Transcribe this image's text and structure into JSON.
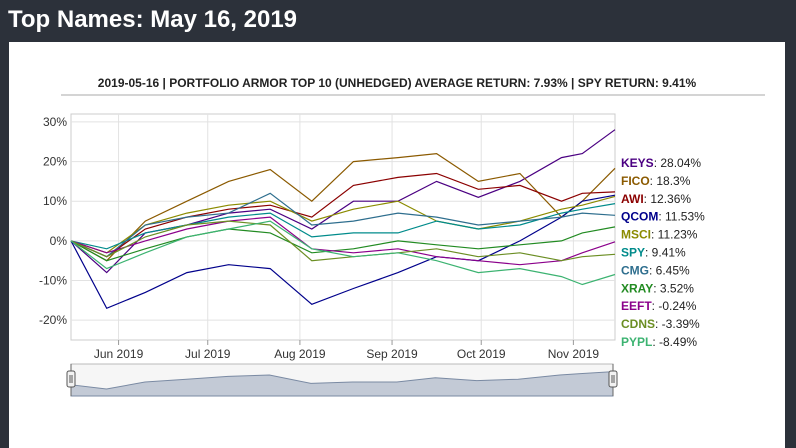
{
  "page": {
    "title": "Top Names: May 16, 2019"
  },
  "chart_data": {
    "type": "line",
    "title": "2019-05-16 | PORTFOLIO ARMOR TOP 10 (UNHEDGED) AVERAGE RETURN: 7.93% | SPY RETURN: 9.41%",
    "xlabel": "",
    "ylabel": "",
    "x_ticks": [
      "Jun 2019",
      "Jul 2019",
      "Aug 2019",
      "Sep 2019",
      "Oct 2019",
      "Nov 2019"
    ],
    "y_ticks": [
      "30%",
      "20%",
      "10%",
      "0%",
      "-10%",
      "-20%"
    ],
    "x_range": [
      "2019-05-16",
      "2019-11-15"
    ],
    "ylim": [
      -25,
      32
    ],
    "grid": true,
    "legend_position": "right",
    "has_range_navigator": true,
    "series": [
      {
        "name": "KEYS",
        "label": "28.04%",
        "color": "#4b0082",
        "points": [
          [
            "2019-05-16",
            0
          ],
          [
            "2019-05-28",
            -8
          ],
          [
            "2019-06-10",
            2
          ],
          [
            "2019-06-24",
            4
          ],
          [
            "2019-07-08",
            7
          ],
          [
            "2019-07-22",
            8
          ],
          [
            "2019-08-05",
            3
          ],
          [
            "2019-08-19",
            10
          ],
          [
            "2019-09-03",
            10
          ],
          [
            "2019-09-16",
            15
          ],
          [
            "2019-09-30",
            11
          ],
          [
            "2019-10-14",
            15
          ],
          [
            "2019-10-28",
            21
          ],
          [
            "2019-11-04",
            22
          ],
          [
            "2019-11-15",
            28.04
          ]
        ]
      },
      {
        "name": "FICO",
        "label": "18.3%",
        "color": "#8b5a00",
        "points": [
          [
            "2019-05-16",
            0
          ],
          [
            "2019-05-28",
            -5
          ],
          [
            "2019-06-10",
            5
          ],
          [
            "2019-06-24",
            10
          ],
          [
            "2019-07-08",
            15
          ],
          [
            "2019-07-22",
            18
          ],
          [
            "2019-08-05",
            10
          ],
          [
            "2019-08-19",
            20
          ],
          [
            "2019-09-03",
            21
          ],
          [
            "2019-09-16",
            22
          ],
          [
            "2019-09-30",
            15
          ],
          [
            "2019-10-14",
            17
          ],
          [
            "2019-10-28",
            6
          ],
          [
            "2019-11-04",
            10
          ],
          [
            "2019-11-15",
            18.3
          ]
        ]
      },
      {
        "name": "AWI",
        "label": "12.36%",
        "color": "#8b0000",
        "points": [
          [
            "2019-05-16",
            0
          ],
          [
            "2019-05-28",
            -4
          ],
          [
            "2019-06-10",
            3
          ],
          [
            "2019-06-24",
            6
          ],
          [
            "2019-07-08",
            8
          ],
          [
            "2019-07-22",
            9
          ],
          [
            "2019-08-05",
            6
          ],
          [
            "2019-08-19",
            14
          ],
          [
            "2019-09-03",
            16
          ],
          [
            "2019-09-16",
            17
          ],
          [
            "2019-09-30",
            13
          ],
          [
            "2019-10-14",
            14
          ],
          [
            "2019-10-28",
            10
          ],
          [
            "2019-11-04",
            12
          ],
          [
            "2019-11-15",
            12.36
          ]
        ]
      },
      {
        "name": "QCOM",
        "label": "11.53%",
        "color": "#00008b",
        "points": [
          [
            "2019-05-16",
            0
          ],
          [
            "2019-05-28",
            -17
          ],
          [
            "2019-06-10",
            -13
          ],
          [
            "2019-06-24",
            -8
          ],
          [
            "2019-07-08",
            -6
          ],
          [
            "2019-07-22",
            -7
          ],
          [
            "2019-08-05",
            -16
          ],
          [
            "2019-08-19",
            -12
          ],
          [
            "2019-09-03",
            -8
          ],
          [
            "2019-09-16",
            -4
          ],
          [
            "2019-09-30",
            -5
          ],
          [
            "2019-10-14",
            0
          ],
          [
            "2019-10-28",
            6
          ],
          [
            "2019-11-04",
            10
          ],
          [
            "2019-11-15",
            11.53
          ]
        ]
      },
      {
        "name": "MSCI",
        "label": "11.23%",
        "color": "#8b8b00",
        "points": [
          [
            "2019-05-16",
            0
          ],
          [
            "2019-05-28",
            -3
          ],
          [
            "2019-06-10",
            4
          ],
          [
            "2019-06-24",
            7
          ],
          [
            "2019-07-08",
            9
          ],
          [
            "2019-07-22",
            10
          ],
          [
            "2019-08-05",
            5
          ],
          [
            "2019-08-19",
            8
          ],
          [
            "2019-09-03",
            10
          ],
          [
            "2019-09-16",
            5
          ],
          [
            "2019-09-30",
            3
          ],
          [
            "2019-10-14",
            5
          ],
          [
            "2019-10-28",
            8
          ],
          [
            "2019-11-04",
            9
          ],
          [
            "2019-11-15",
            11.23
          ]
        ]
      },
      {
        "name": "SPY",
        "label": "9.41%",
        "color": "#008b8b",
        "points": [
          [
            "2019-05-16",
            0
          ],
          [
            "2019-05-28",
            -2
          ],
          [
            "2019-06-10",
            2
          ],
          [
            "2019-06-24",
            4
          ],
          [
            "2019-07-08",
            6
          ],
          [
            "2019-07-22",
            7
          ],
          [
            "2019-08-05",
            1
          ],
          [
            "2019-08-19",
            2
          ],
          [
            "2019-09-03",
            2
          ],
          [
            "2019-09-16",
            5
          ],
          [
            "2019-09-30",
            3
          ],
          [
            "2019-10-14",
            4
          ],
          [
            "2019-10-28",
            7
          ],
          [
            "2019-11-04",
            8
          ],
          [
            "2019-11-15",
            9.41
          ]
        ]
      },
      {
        "name": "CMG",
        "label": "6.45%",
        "color": "#2e6e8e",
        "points": [
          [
            "2019-05-16",
            0
          ],
          [
            "2019-05-28",
            -4
          ],
          [
            "2019-06-10",
            4
          ],
          [
            "2019-06-24",
            6
          ],
          [
            "2019-07-08",
            7
          ],
          [
            "2019-07-22",
            12
          ],
          [
            "2019-08-05",
            4
          ],
          [
            "2019-08-19",
            5
          ],
          [
            "2019-09-03",
            7
          ],
          [
            "2019-09-16",
            6
          ],
          [
            "2019-09-30",
            4
          ],
          [
            "2019-10-14",
            5
          ],
          [
            "2019-10-28",
            6
          ],
          [
            "2019-11-04",
            7
          ],
          [
            "2019-11-15",
            6.45
          ]
        ]
      },
      {
        "name": "XRAY",
        "label": "3.52%",
        "color": "#228b22",
        "points": [
          [
            "2019-05-16",
            0
          ],
          [
            "2019-05-28",
            -5
          ],
          [
            "2019-06-10",
            -2
          ],
          [
            "2019-06-24",
            1
          ],
          [
            "2019-07-08",
            3
          ],
          [
            "2019-07-22",
            2
          ],
          [
            "2019-08-05",
            -3
          ],
          [
            "2019-08-19",
            -2
          ],
          [
            "2019-09-03",
            0
          ],
          [
            "2019-09-16",
            -1
          ],
          [
            "2019-09-30",
            -2
          ],
          [
            "2019-10-14",
            -1
          ],
          [
            "2019-10-28",
            0
          ],
          [
            "2019-11-04",
            2
          ],
          [
            "2019-11-15",
            3.52
          ]
        ]
      },
      {
        "name": "EEFT",
        "label": "-0.24%",
        "color": "#8b008b",
        "points": [
          [
            "2019-05-16",
            0
          ],
          [
            "2019-05-28",
            -3
          ],
          [
            "2019-06-10",
            0
          ],
          [
            "2019-06-24",
            3
          ],
          [
            "2019-07-08",
            5
          ],
          [
            "2019-07-22",
            6
          ],
          [
            "2019-08-05",
            -2
          ],
          [
            "2019-08-19",
            -3
          ],
          [
            "2019-09-03",
            -2
          ],
          [
            "2019-09-16",
            -4
          ],
          [
            "2019-09-30",
            -5
          ],
          [
            "2019-10-14",
            -6
          ],
          [
            "2019-10-28",
            -5
          ],
          [
            "2019-11-04",
            -3
          ],
          [
            "2019-11-15",
            -0.24
          ]
        ]
      },
      {
        "name": "CDNS",
        "label": "-3.39%",
        "color": "#6b8e23",
        "points": [
          [
            "2019-05-16",
            0
          ],
          [
            "2019-05-28",
            -4
          ],
          [
            "2019-06-10",
            1
          ],
          [
            "2019-06-24",
            4
          ],
          [
            "2019-07-08",
            5
          ],
          [
            "2019-07-22",
            4
          ],
          [
            "2019-08-05",
            -5
          ],
          [
            "2019-08-19",
            -4
          ],
          [
            "2019-09-03",
            -3
          ],
          [
            "2019-09-16",
            -2
          ],
          [
            "2019-09-30",
            -4
          ],
          [
            "2019-10-14",
            -3
          ],
          [
            "2019-10-28",
            -5
          ],
          [
            "2019-11-04",
            -4
          ],
          [
            "2019-11-15",
            -3.39
          ]
        ]
      },
      {
        "name": "PYPL",
        "label": "-8.49%",
        "color": "#3cb371",
        "points": [
          [
            "2019-05-16",
            0
          ],
          [
            "2019-05-28",
            -7
          ],
          [
            "2019-06-10",
            -3
          ],
          [
            "2019-06-24",
            1
          ],
          [
            "2019-07-08",
            3
          ],
          [
            "2019-07-22",
            5
          ],
          [
            "2019-08-05",
            -2
          ],
          [
            "2019-08-19",
            -4
          ],
          [
            "2019-09-03",
            -3
          ],
          [
            "2019-09-16",
            -5
          ],
          [
            "2019-09-30",
            -8
          ],
          [
            "2019-10-14",
            -7
          ],
          [
            "2019-10-28",
            -9
          ],
          [
            "2019-11-04",
            -11
          ],
          [
            "2019-11-15",
            -8.49
          ]
        ]
      }
    ],
    "navigator": {
      "points": [
        [
          "2019-05-16",
          0
        ],
        [
          "2019-05-28",
          -3
        ],
        [
          "2019-06-10",
          2
        ],
        [
          "2019-06-24",
          4
        ],
        [
          "2019-07-08",
          6
        ],
        [
          "2019-07-22",
          7
        ],
        [
          "2019-08-05",
          1
        ],
        [
          "2019-08-19",
          2
        ],
        [
          "2019-09-03",
          2
        ],
        [
          "2019-09-16",
          5
        ],
        [
          "2019-09-30",
          3
        ],
        [
          "2019-10-14",
          4
        ],
        [
          "2019-10-28",
          7
        ],
        [
          "2019-11-04",
          8
        ],
        [
          "2019-11-15",
          9.41
        ]
      ]
    }
  }
}
